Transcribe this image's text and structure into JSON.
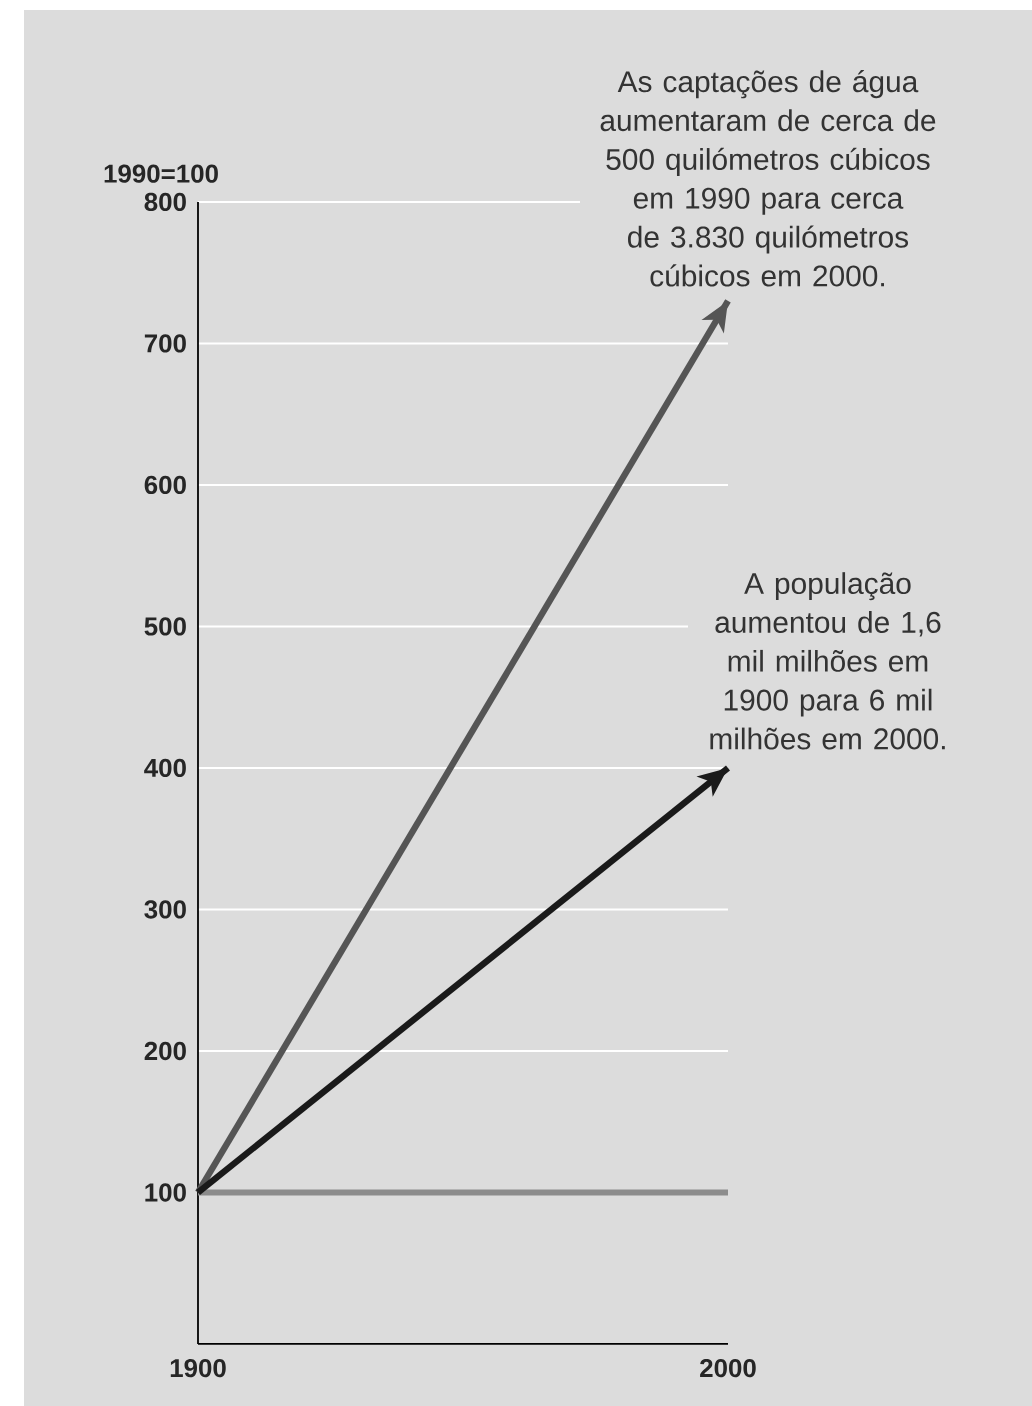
{
  "chart_data": {
    "type": "line",
    "ylabel": "1990=100",
    "x": [
      1900,
      2000
    ],
    "series": [
      {
        "color": "#555555",
        "values": [
          100,
          730
        ]
      },
      {
        "color": "#1a1a1a",
        "values": [
          100,
          400
        ]
      }
    ],
    "xlim": [
      1900,
      2000
    ],
    "xticks": [
      1900,
      2000
    ],
    "ylim": [
      -7,
      800
    ],
    "yticks": [
      100,
      200,
      300,
      400,
      500,
      600,
      700,
      800
    ],
    "grid": "y",
    "ref_lines": [
      {
        "axis": "y",
        "value": 100,
        "color": "#8c8c8c"
      }
    ],
    "annotations": [
      {
        "text": "As captações de água aumentaram de cerca de 500 quilómetros cúbicos em 1990 para cerca de 3.830 quilómetros cúbicos em 2000.",
        "x": 2000,
        "y": 730
      },
      {
        "text": "A população aumentou de 1,6 mil milhões em 1900 para 6 mil milhões em 2000.",
        "x": 2000,
        "y": 400
      }
    ]
  }
}
